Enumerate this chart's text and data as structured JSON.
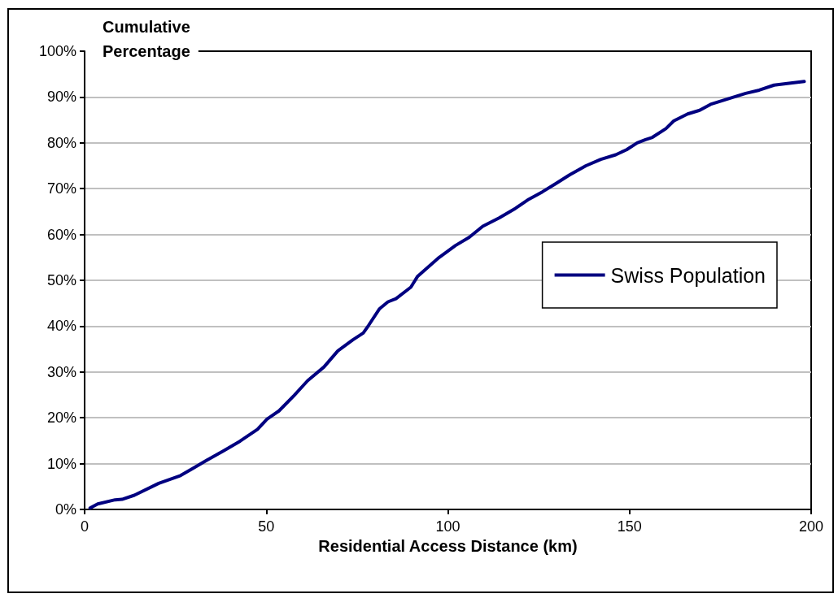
{
  "chart_data": {
    "type": "line",
    "xlabel": "Residential Access Distance (km)",
    "ylabel": "Cumulative Percentage",
    "xlim": [
      0,
      200
    ],
    "xticks": [
      0,
      50,
      100,
      150,
      200
    ],
    "ylim": [
      0,
      100
    ],
    "yticks": [
      {
        "value": 0,
        "label": "0%"
      },
      {
        "value": 10,
        "label": "10%"
      },
      {
        "value": 20,
        "label": "20%"
      },
      {
        "value": 30,
        "label": "30%"
      },
      {
        "value": 40,
        "label": "40%"
      },
      {
        "value": 50,
        "label": "50%"
      },
      {
        "value": 60,
        "label": "60%"
      },
      {
        "value": 70,
        "label": "70%"
      },
      {
        "value": 80,
        "label": "80%"
      },
      {
        "value": 90,
        "label": "90%"
      },
      {
        "value": 100,
        "label": "100%"
      }
    ],
    "grid": "y",
    "legend": "right",
    "marker": "none",
    "line_style": "solid",
    "series": [
      {
        "name": "Swiss Population",
        "color": "#000080",
        "x": [
          1.5,
          3.6,
          8.4,
          10.3,
          13.7,
          20.4,
          26.4,
          29.7,
          33.8,
          38.3,
          42.8,
          47.6,
          50.2,
          53.5,
          57.7,
          61.4,
          65.9,
          69.7,
          73.8,
          76.7,
          78.2,
          81.2,
          83.5,
          85.7,
          89.8,
          91.7,
          97.6,
          102.1,
          105.9,
          109.6,
          114.1,
          118.6,
          122.3,
          126.0,
          129.7,
          133.5,
          138.0,
          142.1,
          146.2,
          149.2,
          152.1,
          154.4,
          156.3,
          160.0,
          162.2,
          166.0,
          169.3,
          172.3,
          177.5,
          182.0,
          185.7,
          189.8,
          193.9,
          198.1
        ],
        "values": [
          0.3,
          1.2,
          2.1,
          2.2,
          3.1,
          5.7,
          7.4,
          8.9,
          10.8,
          12.8,
          14.9,
          17.5,
          19.7,
          21.5,
          24.9,
          28.1,
          31.1,
          34.6,
          37.0,
          38.5,
          40.2,
          43.8,
          45.3,
          46.0,
          48.5,
          50.9,
          55.0,
          57.6,
          59.4,
          61.8,
          63.6,
          65.7,
          67.7,
          69.3,
          71.1,
          73.0,
          75.0,
          76.4,
          77.4,
          78.5,
          80.0,
          80.7,
          81.2,
          83.1,
          84.8,
          86.3,
          87.1,
          88.4,
          89.7,
          90.8,
          91.5,
          92.6,
          93.0,
          93.4
        ]
      }
    ]
  }
}
